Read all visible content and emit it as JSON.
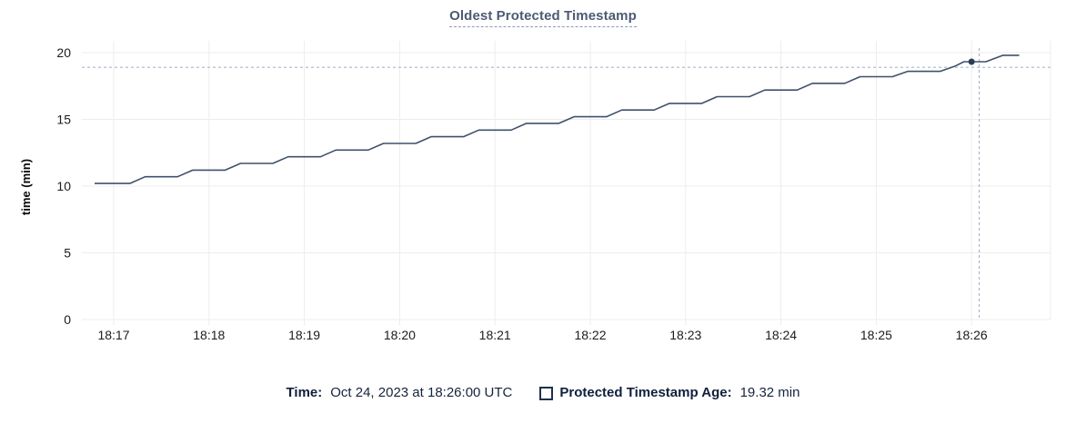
{
  "chart_data": {
    "type": "line",
    "title": "Oldest Protected Timestamp",
    "ylabel": "time (min)",
    "ylim": [
      0,
      20
    ],
    "yticks": [
      0,
      5,
      10,
      15,
      20
    ],
    "xtick_labels": [
      "18:17",
      "18:18",
      "18:19",
      "18:20",
      "18:21",
      "18:22",
      "18:23",
      "18:24",
      "18:25",
      "18:26"
    ],
    "grid": true,
    "legend_position": "bottom",
    "series": [
      {
        "name": "Protected Timestamp Age",
        "unit": "min",
        "points_min_from_1817": [
          [
            -0.2,
            10.2
          ],
          [
            0.17,
            10.2
          ],
          [
            0.33,
            10.7
          ],
          [
            0.67,
            10.7
          ],
          [
            0.83,
            11.2
          ],
          [
            1.17,
            11.2
          ],
          [
            1.33,
            11.7
          ],
          [
            1.67,
            11.7
          ],
          [
            1.83,
            12.2
          ],
          [
            2.17,
            12.2
          ],
          [
            2.33,
            12.7
          ],
          [
            2.67,
            12.7
          ],
          [
            2.83,
            13.2
          ],
          [
            3.17,
            13.2
          ],
          [
            3.33,
            13.7
          ],
          [
            3.67,
            13.7
          ],
          [
            3.83,
            14.2
          ],
          [
            4.17,
            14.2
          ],
          [
            4.33,
            14.7
          ],
          [
            4.67,
            14.7
          ],
          [
            4.83,
            15.2
          ],
          [
            5.17,
            15.2
          ],
          [
            5.33,
            15.7
          ],
          [
            5.67,
            15.7
          ],
          [
            5.83,
            16.2
          ],
          [
            6.17,
            16.2
          ],
          [
            6.33,
            16.7
          ],
          [
            6.67,
            16.7
          ],
          [
            6.83,
            17.2
          ],
          [
            7.17,
            17.2
          ],
          [
            7.33,
            17.7
          ],
          [
            7.67,
            17.7
          ],
          [
            7.83,
            18.2
          ],
          [
            8.17,
            18.2
          ],
          [
            8.33,
            18.6
          ],
          [
            8.67,
            18.6
          ],
          [
            8.83,
            19.0
          ],
          [
            8.92,
            19.32
          ],
          [
            9.15,
            19.32
          ],
          [
            9.33,
            19.8
          ],
          [
            9.5,
            19.8
          ]
        ]
      }
    ],
    "hover_point": {
      "t": 9.0,
      "value": 19.32
    },
    "crosshair": {
      "t": 9.08,
      "value": 18.9
    }
  },
  "footer": {
    "time_label": "Time:",
    "time_value": "Oct 24, 2023 at 18:26:00 UTC",
    "series_label": "Protected Timestamp Age:",
    "series_value": "19.32 min"
  },
  "colors": {
    "line": "#3f506b",
    "marker": "#2b3c57",
    "grid": "#ededed",
    "crosshair": "#a9b7c8",
    "title": "#4c5a73",
    "tick_text": "#1c1c1c",
    "footer_text": "#16233c"
  }
}
